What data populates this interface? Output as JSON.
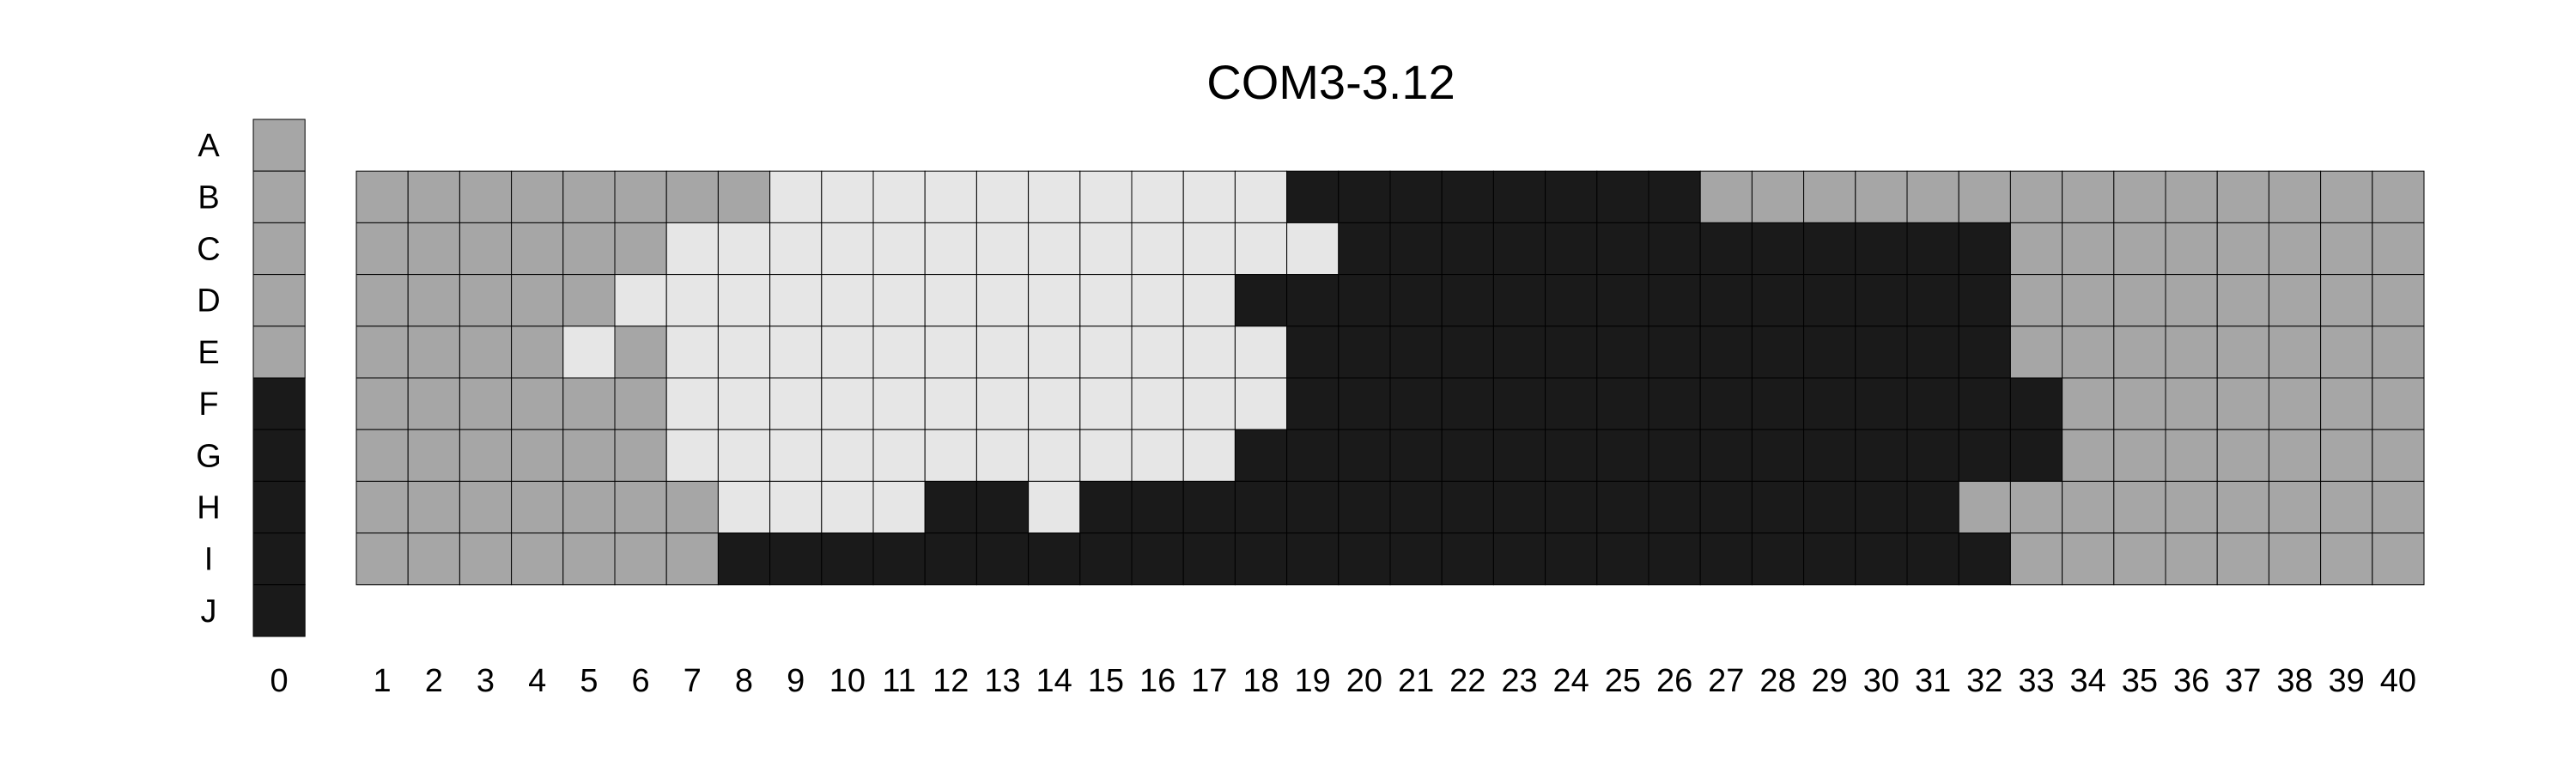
{
  "chart_data": {
    "type": "heatmap",
    "title": "COM3-3.12",
    "xlabel": "",
    "ylabel": "",
    "row_labels": [
      "A",
      "B",
      "C",
      "D",
      "E",
      "F",
      "G",
      "H",
      "I",
      "J"
    ],
    "column0_label": "0",
    "x_labels": [
      "1",
      "2",
      "3",
      "4",
      "5",
      "6",
      "7",
      "8",
      "9",
      "10",
      "11",
      "12",
      "13",
      "14",
      "15",
      "16",
      "17",
      "18",
      "19",
      "20",
      "21",
      "22",
      "23",
      "24",
      "25",
      "26",
      "27",
      "28",
      "29",
      "30",
      "31",
      "32",
      "33",
      "34",
      "35",
      "36",
      "37",
      "38",
      "39",
      "40"
    ],
    "colors": {
      "G": "#a6a6a6",
      "L": "#e6e6e6",
      "D": "#1a1a1a"
    },
    "legend_key": {
      "G": "gray",
      "L": "light",
      "D": "dark"
    },
    "column0": [
      "G",
      "G",
      "G",
      "G",
      "G",
      "D",
      "D",
      "D",
      "D",
      "D"
    ],
    "grid_rows": [
      "B",
      "C",
      "D",
      "E",
      "F",
      "G",
      "H",
      "I"
    ],
    "grid": [
      "GGGGGGGGLLLLLLLLLLDDDDDDDDGGGGGGGGGGGGGG",
      "GGGGGGLLLLLLLLLLLLLDDDDDDDDDDDDDGGGGGGGG",
      "GGGGGLLLLLLLLLLLLDDDDDDDDDDDDDDDGGGGGGGG",
      "GGGGLGLLLLLLLLLLLLDDDDDDDDDDDDDDGGGGGGGG",
      "GGGGGGLLLLLLLLLLLLDDDDDDDDDDDDDDDGGGGGGG",
      "GGGGGGLLLLLLLLLLLDDDDDDDDDDDDDDDDGGGGGGG",
      "GGGGGGGLLLLDDLDDDDDDDDDDDDDDDDDGGGGGGGGG",
      "GGGGGGGDDDDDDDDDDDDDDDDDDDDDDDDDGGGGGGGG"
    ]
  }
}
